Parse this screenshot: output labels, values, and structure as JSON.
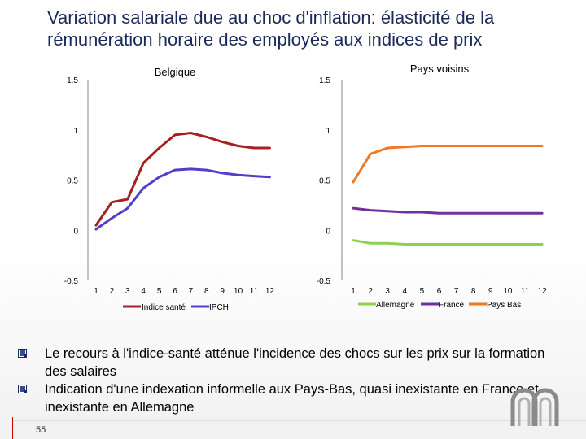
{
  "slide": {
    "title": "Variation salariale due au choc d'inflation: élasticité de la rémunération horaire des employés aux indices de prix",
    "bullets": [
      "Le recours à l'indice-santé atténue l'incidence des chocs sur les prix sur la formation des salaires",
      "Indication d'une indexation informelle aux Pays-Bas, quasi inexistante en France et inexistante en Allemagne"
    ],
    "page_number": "55"
  },
  "chart_data": [
    {
      "type": "line",
      "title": "Belgique",
      "x": [
        1,
        2,
        3,
        4,
        5,
        6,
        7,
        8,
        9,
        10,
        11,
        12
      ],
      "x_tick_labels": [
        "1",
        "2",
        "3",
        "4",
        "5",
        "6",
        "7",
        "8",
        "9",
        "10",
        "11",
        "12"
      ],
      "y_tick_labels": [
        "1.5",
        "1",
        "0.5",
        "0",
        "-0.5"
      ],
      "ylim": [
        -0.5,
        1.5
      ],
      "series": [
        {
          "name": "Indice santé",
          "color": "#a52020",
          "values": [
            0.05,
            0.28,
            0.31,
            0.67,
            0.82,
            0.95,
            0.97,
            0.93,
            0.88,
            0.84,
            0.82,
            0.82
          ]
        },
        {
          "name": "IPCH",
          "color": "#5040c8",
          "values": [
            0.01,
            0.12,
            0.22,
            0.42,
            0.53,
            0.6,
            0.61,
            0.6,
            0.57,
            0.55,
            0.54,
            0.53
          ]
        }
      ],
      "legend_position": "bottom"
    },
    {
      "type": "line",
      "title": "Pays voisins",
      "x": [
        1,
        2,
        3,
        4,
        5,
        6,
        7,
        8,
        9,
        10,
        11,
        12
      ],
      "x_tick_labels": [
        "1",
        "2",
        "3",
        "4",
        "5",
        "6",
        "7",
        "8",
        "9",
        "10",
        "11",
        "12"
      ],
      "y_tick_labels": [
        "1.5",
        "1",
        "0.5",
        "0",
        "-0.5"
      ],
      "ylim": [
        -0.5,
        1.5
      ],
      "series": [
        {
          "name": "Allemagne",
          "color": "#90d050",
          "values": [
            -0.1,
            -0.13,
            -0.13,
            -0.14,
            -0.14,
            -0.14,
            -0.14,
            -0.14,
            -0.14,
            -0.14,
            -0.14,
            -0.14
          ]
        },
        {
          "name": "France",
          "color": "#7030a0",
          "values": [
            0.22,
            0.2,
            0.19,
            0.18,
            0.18,
            0.17,
            0.17,
            0.17,
            0.17,
            0.17,
            0.17,
            0.17
          ]
        },
        {
          "name": "Pays Bas",
          "color": "#f07820",
          "values": [
            0.48,
            0.76,
            0.82,
            0.83,
            0.84,
            0.84,
            0.84,
            0.84,
            0.84,
            0.84,
            0.84,
            0.84
          ]
        }
      ],
      "legend_position": "bottom"
    }
  ]
}
